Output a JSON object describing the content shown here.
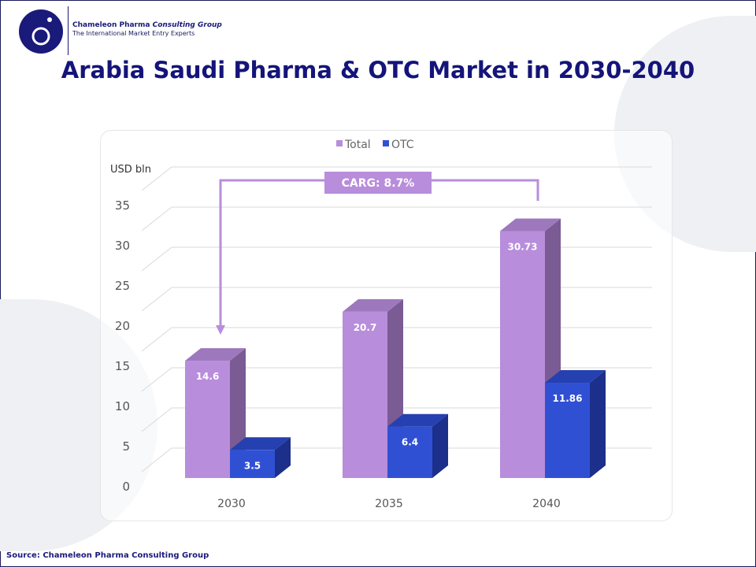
{
  "header": {
    "brand_bold": "Chameleon Pharma",
    "brand_italic": "Consulting Group",
    "tagline": "The International Market Entry Experts"
  },
  "title": "Arabia Saudi Pharma & OTC Market in 2030-2040",
  "source": "Source: Chameleon Pharma Consulting Group",
  "chart_data": {
    "type": "bar",
    "style": "3d-clustered",
    "categories": [
      "2030",
      "2035",
      "2040"
    ],
    "series": [
      {
        "name": "Total",
        "values": [
          14.6,
          20.7,
          30.73
        ],
        "labels": [
          "14.6",
          "20.7",
          "30.73"
        ],
        "color": "#b88ddb"
      },
      {
        "name": "OTC",
        "values": [
          3.5,
          6.4,
          11.86
        ],
        "labels": [
          "3.5",
          "6.4",
          "11.86"
        ],
        "color": "#3050d4"
      }
    ],
    "ylabel": "USD bln",
    "ylim": [
      0,
      35
    ],
    "yticks": [
      0,
      5,
      10,
      15,
      20,
      25,
      30,
      35
    ],
    "grid": true,
    "legend": "top",
    "annotation": "CARG: 8.7%"
  }
}
